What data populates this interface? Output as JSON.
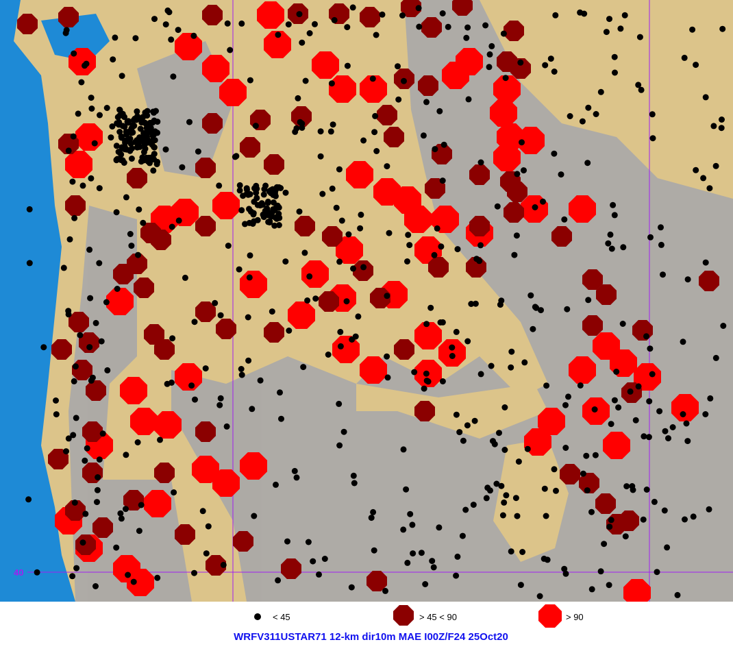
{
  "map": {
    "latitude_label": "40",
    "colors": {
      "ocean": "#1e8ad6",
      "land": "#dcc48a",
      "mountain": "#a8a8a8",
      "grid": "#a020f0",
      "low": "#000000",
      "mid": "#8b0000",
      "high": "#ff0000"
    }
  },
  "legend": {
    "items": [
      {
        "label": "< 45",
        "color": "#000000",
        "symbol": "dot"
      },
      {
        "label": "> 45 < 90",
        "color": "#8b0000",
        "symbol": "octagon"
      },
      {
        "label": "> 90",
        "color": "#ff0000",
        "symbol": "octagon"
      }
    ]
  },
  "title": "WRFV311USTAR71 12-km dir10m MAE I00Z/F24 25Oct20"
}
